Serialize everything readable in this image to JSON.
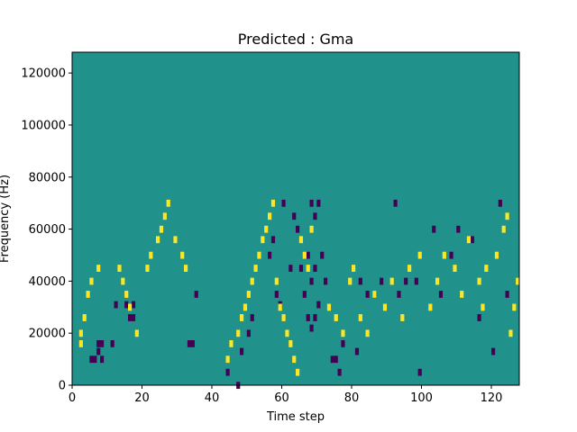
{
  "chart_data": {
    "type": "heatmap",
    "title": "Predicted : Gma",
    "xlabel": "Time step",
    "ylabel": "Frequency (Hz)",
    "xlim": [
      0,
      128
    ],
    "ylim": [
      0,
      128000
    ],
    "x_ticks": [
      0,
      20,
      40,
      60,
      80,
      100,
      120
    ],
    "y_ticks": [
      0,
      20000,
      40000,
      60000,
      80000,
      100000,
      120000
    ],
    "value_levels": {
      "low": -1,
      "mid": 0,
      "high": 1
    },
    "colors": {
      "low": "#440154",
      "mid": "#21918c",
      "high": "#fde725"
    },
    "grid": false,
    "low_cells": [
      [
        5,
        10000
      ],
      [
        6,
        10000
      ],
      [
        7,
        13000
      ],
      [
        7,
        16000
      ],
      [
        8,
        10000
      ],
      [
        8,
        16000
      ],
      [
        11,
        16000
      ],
      [
        12,
        31000
      ],
      [
        15,
        31000
      ],
      [
        16,
        26000
      ],
      [
        17,
        26000
      ],
      [
        17,
        31000
      ],
      [
        33,
        16000
      ],
      [
        34,
        16000
      ],
      [
        35,
        35000
      ],
      [
        44,
        5000
      ],
      [
        47,
        0
      ],
      [
        48,
        13000
      ],
      [
        50,
        20000
      ],
      [
        51,
        26000
      ],
      [
        56,
        50000
      ],
      [
        57,
        56000
      ],
      [
        58,
        35000
      ],
      [
        59,
        31000
      ],
      [
        60,
        70000
      ],
      [
        62,
        45000
      ],
      [
        63,
        65000
      ],
      [
        64,
        60000
      ],
      [
        65,
        45000
      ],
      [
        66,
        35000
      ],
      [
        67,
        26000
      ],
      [
        67,
        50000
      ],
      [
        68,
        22000
      ],
      [
        68,
        40000
      ],
      [
        68,
        70000
      ],
      [
        69,
        26000
      ],
      [
        69,
        45000
      ],
      [
        69,
        65000
      ],
      [
        70,
        31000
      ],
      [
        70,
        70000
      ],
      [
        71,
        50000
      ],
      [
        72,
        40000
      ],
      [
        74,
        10000
      ],
      [
        75,
        10000
      ],
      [
        76,
        5000
      ],
      [
        77,
        16000
      ],
      [
        81,
        13000
      ],
      [
        82,
        40000
      ],
      [
        84,
        35000
      ],
      [
        86,
        35000
      ],
      [
        88,
        40000
      ],
      [
        92,
        70000
      ],
      [
        93,
        35000
      ],
      [
        95,
        40000
      ],
      [
        98,
        40000
      ],
      [
        99,
        5000
      ],
      [
        103,
        60000
      ],
      [
        105,
        35000
      ],
      [
        108,
        50000
      ],
      [
        110,
        60000
      ],
      [
        114,
        56000
      ],
      [
        116,
        26000
      ],
      [
        120,
        13000
      ],
      [
        122,
        70000
      ],
      [
        124,
        35000
      ]
    ],
    "high_cells": [
      [
        2,
        16000
      ],
      [
        2,
        20000
      ],
      [
        3,
        26000
      ],
      [
        4,
        35000
      ],
      [
        5,
        40000
      ],
      [
        7,
        45000
      ],
      [
        13,
        45000
      ],
      [
        14,
        40000
      ],
      [
        15,
        35000
      ],
      [
        16,
        30000
      ],
      [
        18,
        20000
      ],
      [
        21,
        45000
      ],
      [
        22,
        50000
      ],
      [
        24,
        56000
      ],
      [
        25,
        60000
      ],
      [
        26,
        65000
      ],
      [
        27,
        70000
      ],
      [
        29,
        56000
      ],
      [
        31,
        50000
      ],
      [
        32,
        45000
      ],
      [
        44,
        10000
      ],
      [
        45,
        16000
      ],
      [
        47,
        20000
      ],
      [
        48,
        26000
      ],
      [
        49,
        30000
      ],
      [
        50,
        35000
      ],
      [
        51,
        40000
      ],
      [
        52,
        45000
      ],
      [
        53,
        50000
      ],
      [
        54,
        56000
      ],
      [
        55,
        60000
      ],
      [
        56,
        65000
      ],
      [
        57,
        70000
      ],
      [
        58,
        40000
      ],
      [
        59,
        30000
      ],
      [
        60,
        26000
      ],
      [
        61,
        20000
      ],
      [
        62,
        16000
      ],
      [
        63,
        10000
      ],
      [
        64,
        5000
      ],
      [
        65,
        56000
      ],
      [
        66,
        50000
      ],
      [
        67,
        45000
      ],
      [
        68,
        60000
      ],
      [
        73,
        30000
      ],
      [
        75,
        26000
      ],
      [
        77,
        20000
      ],
      [
        79,
        40000
      ],
      [
        80,
        45000
      ],
      [
        82,
        26000
      ],
      [
        84,
        20000
      ],
      [
        86,
        35000
      ],
      [
        89,
        30000
      ],
      [
        91,
        40000
      ],
      [
        94,
        26000
      ],
      [
        96,
        45000
      ],
      [
        99,
        50000
      ],
      [
        102,
        30000
      ],
      [
        104,
        40000
      ],
      [
        106,
        50000
      ],
      [
        109,
        45000
      ],
      [
        111,
        35000
      ],
      [
        113,
        56000
      ],
      [
        116,
        40000
      ],
      [
        117,
        30000
      ],
      [
        118,
        45000
      ],
      [
        121,
        50000
      ],
      [
        123,
        60000
      ],
      [
        124,
        65000
      ],
      [
        125,
        20000
      ],
      [
        126,
        30000
      ],
      [
        127,
        40000
      ]
    ]
  }
}
